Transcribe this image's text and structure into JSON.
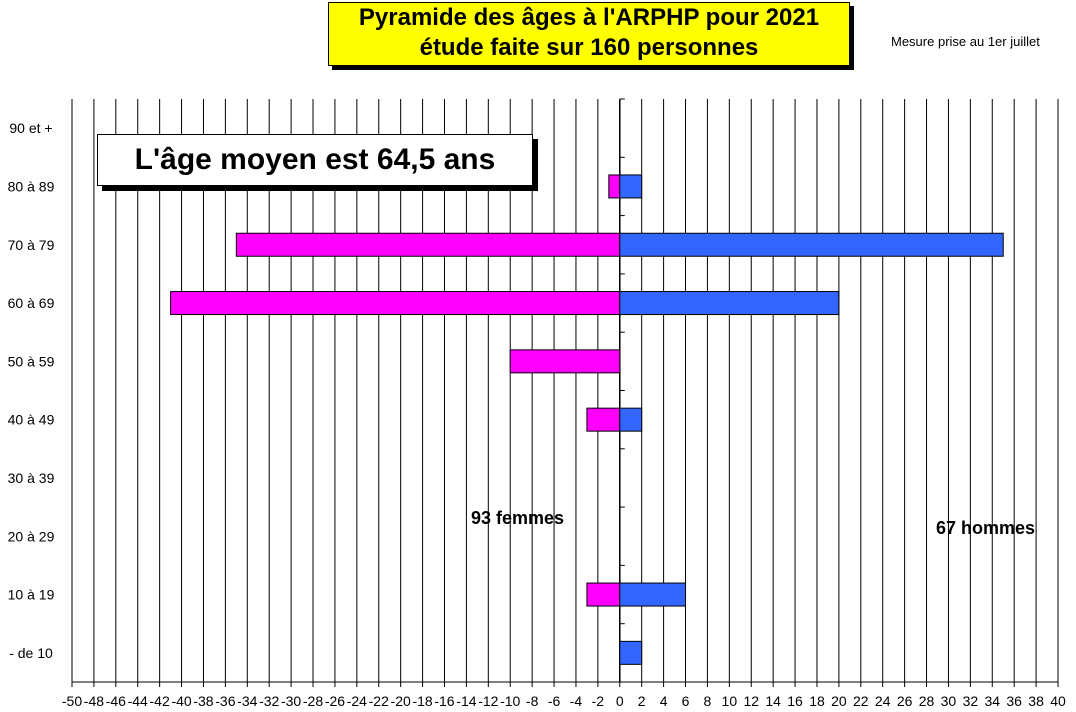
{
  "title": {
    "line1": "Pyramide des âges à l'ARPHP pour 2021",
    "line2": "étude faite sur 160 personnes"
  },
  "measure_note": "Mesure prise au  1er juillet",
  "average_label": "L'âge moyen est 64,5 ans",
  "totals": {
    "women": "93 femmes",
    "men": "67 hommes"
  },
  "colors": {
    "women": "#ff00ff",
    "men": "#3366ff",
    "title_bg": "#ffff00"
  },
  "chart_data": {
    "type": "bar",
    "orientation": "horizontal",
    "stacked": "diverging",
    "categories": [
      "90 et +",
      "80 à 89",
      "70 à 79",
      "60 à 69",
      "50 à 59",
      "40 à 49",
      "30 à 39",
      "20 à 29",
      "10 à 19",
      "- de 10"
    ],
    "series": [
      {
        "values": [
          0,
          -1,
          -35,
          -41,
          -10,
          -3,
          0,
          0,
          -3,
          0
        ]
      },
      {
        "values": [
          0,
          2,
          35,
          20,
          0,
          2,
          0,
          0,
          6,
          2
        ]
      }
    ],
    "xlim": [
      -50,
      40
    ],
    "x_tick_step": 2,
    "grid": true
  }
}
